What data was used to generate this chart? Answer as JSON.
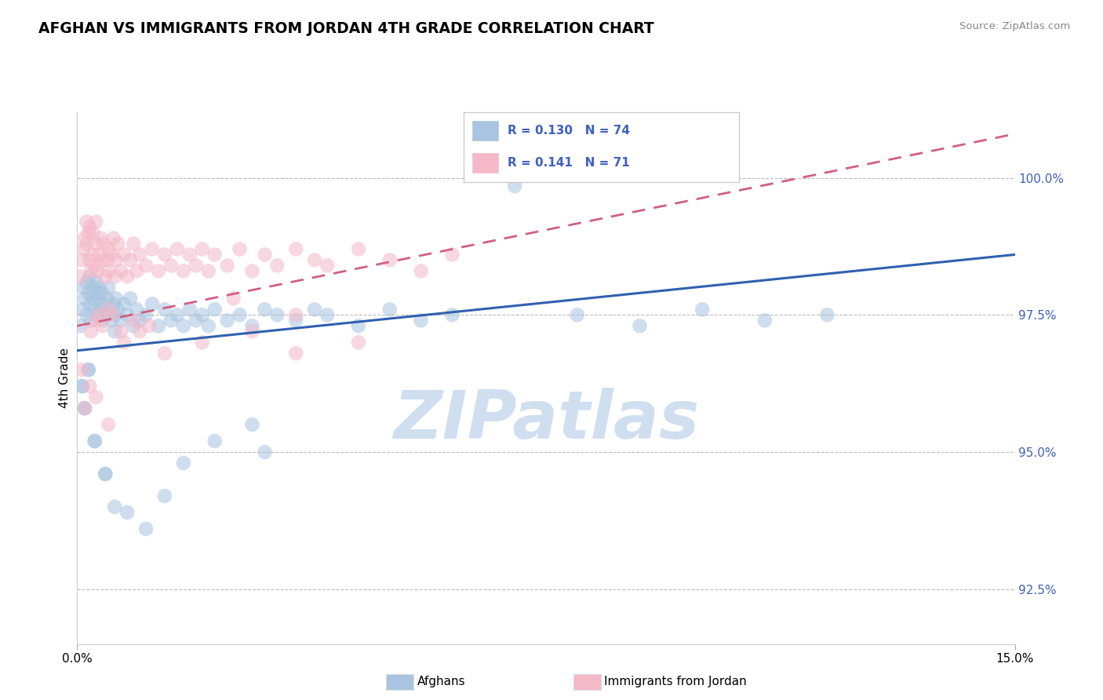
{
  "title": "AFGHAN VS IMMIGRANTS FROM JORDAN 4TH GRADE CORRELATION CHART",
  "source": "Source: ZipAtlas.com",
  "ylabel": "4th Grade",
  "ytick_vals": [
    92.5,
    95.0,
    97.5,
    100.0
  ],
  "xlim": [
    0.0,
    15.0
  ],
  "ylim": [
    91.5,
    101.2
  ],
  "legend_r1": "R = 0.130",
  "legend_n1": "N = 74",
  "legend_r2": "R = 0.141",
  "legend_n2": "N = 71",
  "blue_color": "#a8c4e0",
  "pink_color": "#f4b8c8",
  "blue_line_color": "#3060b0",
  "pink_line_color": "#d06080",
  "text_color": "#4060c0",
  "watermark_color": "#d0dff0",
  "watermark": "ZIPatlas",
  "blue_line_x0": 0.0,
  "blue_line_y0": 96.85,
  "blue_line_x1": 15.0,
  "blue_line_y1": 98.6,
  "pink_line_x0": 0.0,
  "pink_line_y0": 97.3,
  "pink_line_x1": 15.0,
  "pink_line_y1": 100.8,
  "afghans_x": [
    0.05,
    0.08,
    0.1,
    0.12,
    0.15,
    0.15,
    0.18,
    0.2,
    0.2,
    0.22,
    0.25,
    0.25,
    0.28,
    0.3,
    0.3,
    0.32,
    0.35,
    0.35,
    0.38,
    0.4,
    0.4,
    0.42,
    0.45,
    0.48,
    0.5,
    0.5,
    0.55,
    0.58,
    0.6,
    0.62,
    0.65,
    0.7,
    0.75,
    0.8,
    0.85,
    0.9,
    0.95,
    1.0,
    1.1,
    1.2,
    1.3,
    1.4,
    1.5,
    1.6,
    1.7,
    1.8,
    1.9,
    2.0,
    2.1,
    2.2,
    2.4,
    2.6,
    2.8,
    3.0,
    3.2,
    3.5,
    3.8,
    4.0,
    4.5,
    5.0,
    5.5,
    6.0,
    7.0,
    8.0,
    9.0,
    10.0,
    11.0,
    12.0,
    0.08,
    0.12,
    0.18,
    0.28,
    0.45,
    0.6
  ],
  "afghans_y": [
    97.3,
    97.6,
    98.0,
    97.8,
    98.1,
    97.5,
    97.9,
    97.7,
    98.2,
    97.4,
    97.8,
    98.0,
    97.6,
    97.9,
    98.1,
    97.5,
    97.8,
    98.0,
    97.6,
    97.9,
    97.4,
    97.7,
    97.5,
    97.8,
    97.6,
    98.0,
    97.4,
    97.7,
    97.5,
    97.8,
    97.6,
    97.4,
    97.7,
    97.5,
    97.8,
    97.3,
    97.6,
    97.4,
    97.5,
    97.7,
    97.3,
    97.6,
    97.4,
    97.5,
    97.3,
    97.6,
    97.4,
    97.5,
    97.3,
    97.6,
    97.4,
    97.5,
    97.3,
    97.6,
    97.5,
    97.4,
    97.6,
    97.5,
    97.3,
    97.6,
    97.4,
    97.5,
    99.85,
    97.5,
    97.3,
    97.6,
    97.4,
    97.5,
    96.2,
    95.8,
    96.5,
    95.2,
    94.6,
    97.2
  ],
  "afghans_y_low": [
    96.2,
    95.8,
    96.5,
    95.2,
    94.6,
    94.0,
    93.9,
    93.6,
    94.2,
    94.8,
    95.2,
    95.5,
    95.0
  ],
  "afghans_x_low": [
    0.08,
    0.12,
    0.18,
    0.28,
    0.45,
    0.6,
    0.8,
    1.1,
    1.4,
    1.7,
    2.2,
    2.8,
    3.0
  ],
  "jordan_x": [
    0.05,
    0.08,
    0.1,
    0.12,
    0.15,
    0.15,
    0.18,
    0.2,
    0.2,
    0.22,
    0.25,
    0.25,
    0.28,
    0.3,
    0.3,
    0.32,
    0.35,
    0.38,
    0.4,
    0.42,
    0.45,
    0.48,
    0.5,
    0.5,
    0.55,
    0.58,
    0.6,
    0.62,
    0.65,
    0.7,
    0.75,
    0.8,
    0.85,
    0.9,
    0.95,
    1.0,
    1.1,
    1.2,
    1.3,
    1.4,
    1.5,
    1.6,
    1.7,
    1.8,
    1.9,
    2.0,
    2.1,
    2.2,
    2.4,
    2.6,
    2.8,
    3.0,
    3.2,
    3.5,
    3.8,
    4.0,
    4.5,
    5.0,
    5.5,
    6.0,
    0.35,
    0.5,
    2.5,
    3.5,
    0.22,
    0.3,
    0.4,
    0.55,
    0.7,
    0.9,
    1.15
  ],
  "jordan_y": [
    98.2,
    98.5,
    98.7,
    98.9,
    98.8,
    99.2,
    99.0,
    98.5,
    99.1,
    98.3,
    98.6,
    99.0,
    98.4,
    98.8,
    99.2,
    98.3,
    98.6,
    98.9,
    98.5,
    98.8,
    98.2,
    98.5,
    98.7,
    98.3,
    98.6,
    98.9,
    98.2,
    98.5,
    98.8,
    98.3,
    98.6,
    98.2,
    98.5,
    98.8,
    98.3,
    98.6,
    98.4,
    98.7,
    98.3,
    98.6,
    98.4,
    98.7,
    98.3,
    98.6,
    98.4,
    98.7,
    98.3,
    98.6,
    98.4,
    98.7,
    98.3,
    98.6,
    98.4,
    98.7,
    98.5,
    98.4,
    98.7,
    98.5,
    98.3,
    98.6,
    97.5,
    97.6,
    97.8,
    97.5,
    97.2,
    97.4,
    97.3,
    97.5,
    97.2,
    97.4,
    97.3
  ],
  "jordan_low_x": [
    0.08,
    0.12,
    0.2,
    0.3,
    0.5,
    0.75,
    1.0,
    1.4,
    2.0,
    2.8,
    3.5,
    4.5
  ],
  "jordan_low_y": [
    96.5,
    95.8,
    96.2,
    96.0,
    95.5,
    97.0,
    97.2,
    96.8,
    97.0,
    97.2,
    96.8,
    97.0
  ]
}
